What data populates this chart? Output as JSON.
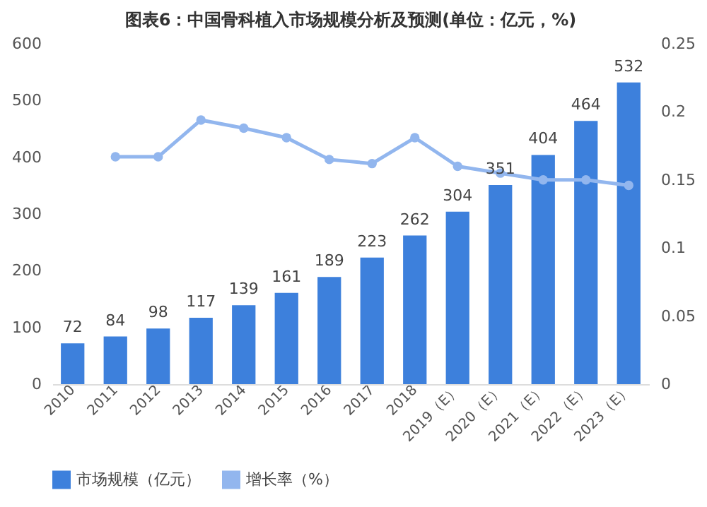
{
  "chart_data": {
    "type": "bar",
    "title": "图表6：中国骨科植入市场规模分析及预测(单位：亿元，%)",
    "categories": [
      "2010",
      "2011",
      "2012",
      "2013",
      "2014",
      "2015",
      "2016",
      "2017",
      "2018",
      "2019（E）",
      "2020（E）",
      "2021（E）",
      "2022（E）",
      "2023（E）"
    ],
    "series": [
      {
        "name": "市场规模（亿元）",
        "color": "#3d80dc",
        "values": [
          72,
          84,
          98,
          117,
          139,
          161,
          189,
          223,
          262,
          304,
          351,
          404,
          464,
          532
        ],
        "value_labels": [
          "72",
          "84",
          "98",
          "117",
          "139",
          "161",
          "189",
          "223",
          "262",
          "304",
          "351",
          "404",
          "464",
          "532"
        ]
      },
      {
        "name": "增长率（%）",
        "type": "line",
        "axis": "y2",
        "color": "#92b6ee",
        "marker": "circle",
        "values": [
          null,
          0.167,
          0.167,
          0.194,
          0.188,
          0.181,
          0.165,
          0.162,
          0.181,
          0.16,
          0.155,
          0.15,
          0.15,
          0.146
        ]
      }
    ],
    "ylim": [
      0,
      600
    ],
    "yticks": [
      0,
      100,
      200,
      300,
      400,
      500,
      600
    ],
    "y2lim": [
      0,
      0.25
    ],
    "y2ticks": [
      0,
      0.05,
      0.1,
      0.15,
      0.2,
      0.25
    ],
    "grid": false,
    "legend": "bottom"
  }
}
